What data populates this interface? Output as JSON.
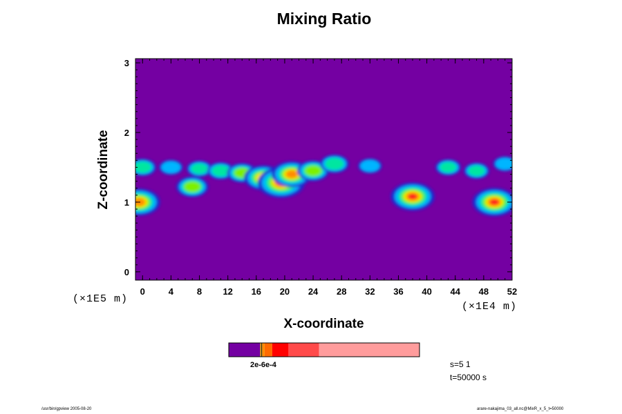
{
  "chart_data": {
    "type": "heatmap",
    "title": "Mixing Ratio",
    "xlabel": "X-coordinate",
    "ylabel": "Z-coordinate",
    "x_unit": "(×1E4 m)",
    "y_unit": "(×1E5 m)",
    "xlim": [
      -1,
      52
    ],
    "ylim": [
      -0.12,
      3.06
    ],
    "x_ticks": [
      "0",
      "4",
      "8",
      "12",
      "16",
      "20",
      "24",
      "28",
      "32",
      "36",
      "40",
      "44",
      "48",
      "52"
    ],
    "y_ticks": [
      "0",
      "1",
      "2",
      "3"
    ],
    "background_color": "#7400a2",
    "grid": false,
    "features": [
      {
        "x": 0,
        "z": 1.5,
        "value": 0.4
      },
      {
        "x": 4,
        "z": 1.5,
        "value": 0.3
      },
      {
        "x": 8,
        "z": 1.48,
        "value": 0.35
      },
      {
        "x": 11,
        "z": 1.45,
        "value": 0.4
      },
      {
        "x": 14,
        "z": 1.42,
        "value": 0.5
      },
      {
        "x": 17,
        "z": 1.35,
        "value": 0.75
      },
      {
        "x": 19.5,
        "z": 1.28,
        "value": 1.0
      },
      {
        "x": 21,
        "z": 1.4,
        "value": 0.8
      },
      {
        "x": 24,
        "z": 1.45,
        "value": 0.55
      },
      {
        "x": 27,
        "z": 1.55,
        "value": 0.45
      },
      {
        "x": 32,
        "z": 1.52,
        "value": 0.3
      },
      {
        "x": 7,
        "z": 1.22,
        "value": 0.55
      },
      {
        "x": -0.5,
        "z": 1.0,
        "value": 0.85
      },
      {
        "x": 38,
        "z": 1.08,
        "value": 0.9
      },
      {
        "x": 49.5,
        "z": 1.0,
        "value": 0.9
      },
      {
        "x": 43,
        "z": 1.5,
        "value": 0.35
      },
      {
        "x": 47,
        "z": 1.45,
        "value": 0.35
      },
      {
        "x": 51,
        "z": 1.55,
        "value": 0.3
      }
    ],
    "colorbar": {
      "segments": [
        {
          "color": "#7400a2",
          "width": 0.165
        },
        {
          "color": "#e8b800",
          "width": 0.006
        },
        {
          "color": "#000000",
          "width": 0.004
        },
        {
          "color": "#ff8c00",
          "width": 0.013
        },
        {
          "color": "#ff6a00",
          "width": 0.04
        },
        {
          "color": "#ff0000",
          "width": 0.085
        },
        {
          "color": "#ff4a4a",
          "width": 0.16
        },
        {
          "color": "#ff9c9c",
          "width": 0.527
        }
      ],
      "label": "2e-6e-4"
    },
    "annotations": {
      "s": "s=5 1",
      "t": "t=50000 s"
    }
  },
  "footer": {
    "left": "/usr/bin/gpview 2005-08-20",
    "right": "arare-nakajima_03_all.nc@MixR_x_5_t=50000"
  }
}
